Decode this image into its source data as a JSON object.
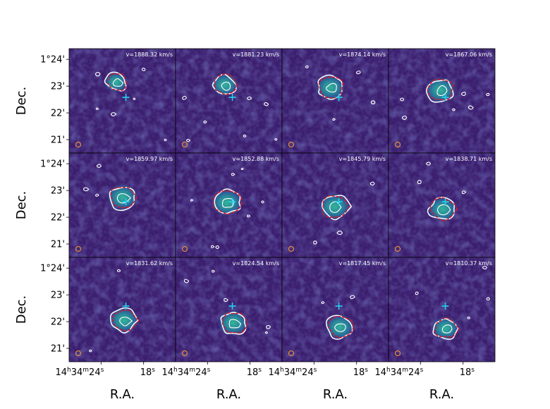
{
  "chart_data": {
    "type": "channel_map",
    "rows": 3,
    "cols": 4,
    "xlabel": "R.A.",
    "ylabel": "Dec.",
    "x_ticks": [
      {
        "h": "14",
        "m": "34",
        "s": "24",
        "short": "18"
      }
    ],
    "y_ticks": [
      "1°24'",
      "23'",
      "22'",
      "21'"
    ],
    "y_tick_values_arcmin": [
      24,
      23,
      22,
      21
    ],
    "ylim_arcmin": [
      20.5,
      24.4
    ],
    "xlim_sec": [
      28.5,
      13.5
    ],
    "cross_position": {
      "ra_sec": 20.5,
      "dec_arcmin": 22.58
    },
    "colors": {
      "background": "#3b1f6e",
      "contour_inner": "#ffffff",
      "contour_outer": "#e8141a",
      "cross": "#22d3ee",
      "beam": "#e08a3a"
    },
    "panels": [
      {
        "velocity": "v=1888.32 km/s",
        "src_ra_sec": 21.9,
        "src_dec": 23.15,
        "size": 0.5
      },
      {
        "velocity": "v=1881.23 km/s",
        "src_ra_sec": 21.6,
        "src_dec": 23.05,
        "size": 0.7
      },
      {
        "velocity": "v=1874.14 km/s",
        "src_ra_sec": 21.7,
        "src_dec": 22.95,
        "size": 0.85
      },
      {
        "velocity": "v=1867.06 km/s",
        "src_ra_sec": 21.2,
        "src_dec": 22.85,
        "size": 0.95
      },
      {
        "velocity": "v=1859.97 km/s",
        "src_ra_sec": 21.0,
        "src_dec": 22.75,
        "size": 0.95
      },
      {
        "velocity": "v=1852.88 km/s",
        "src_ra_sec": 21.3,
        "src_dec": 22.55,
        "size": 1.0
      },
      {
        "velocity": "v=1845.79 km/s",
        "src_ra_sec": 21.1,
        "src_dec": 22.4,
        "size": 1.0
      },
      {
        "velocity": "v=1838.71 km/s",
        "src_ra_sec": 20.9,
        "src_dec": 22.3,
        "size": 0.85
      },
      {
        "velocity": "v=1831.62 km/s",
        "src_ra_sec": 20.8,
        "src_dec": 22.05,
        "size": 0.9
      },
      {
        "velocity": "v=1824.54 km/s",
        "src_ra_sec": 20.4,
        "src_dec": 21.95,
        "size": 0.9
      },
      {
        "velocity": "v=1817.45 km/s",
        "src_ra_sec": 20.4,
        "src_dec": 21.8,
        "size": 0.85
      },
      {
        "velocity": "v=1810.37 km/s",
        "src_ra_sec": 20.5,
        "src_dec": 21.75,
        "size": 0.75
      }
    ]
  }
}
